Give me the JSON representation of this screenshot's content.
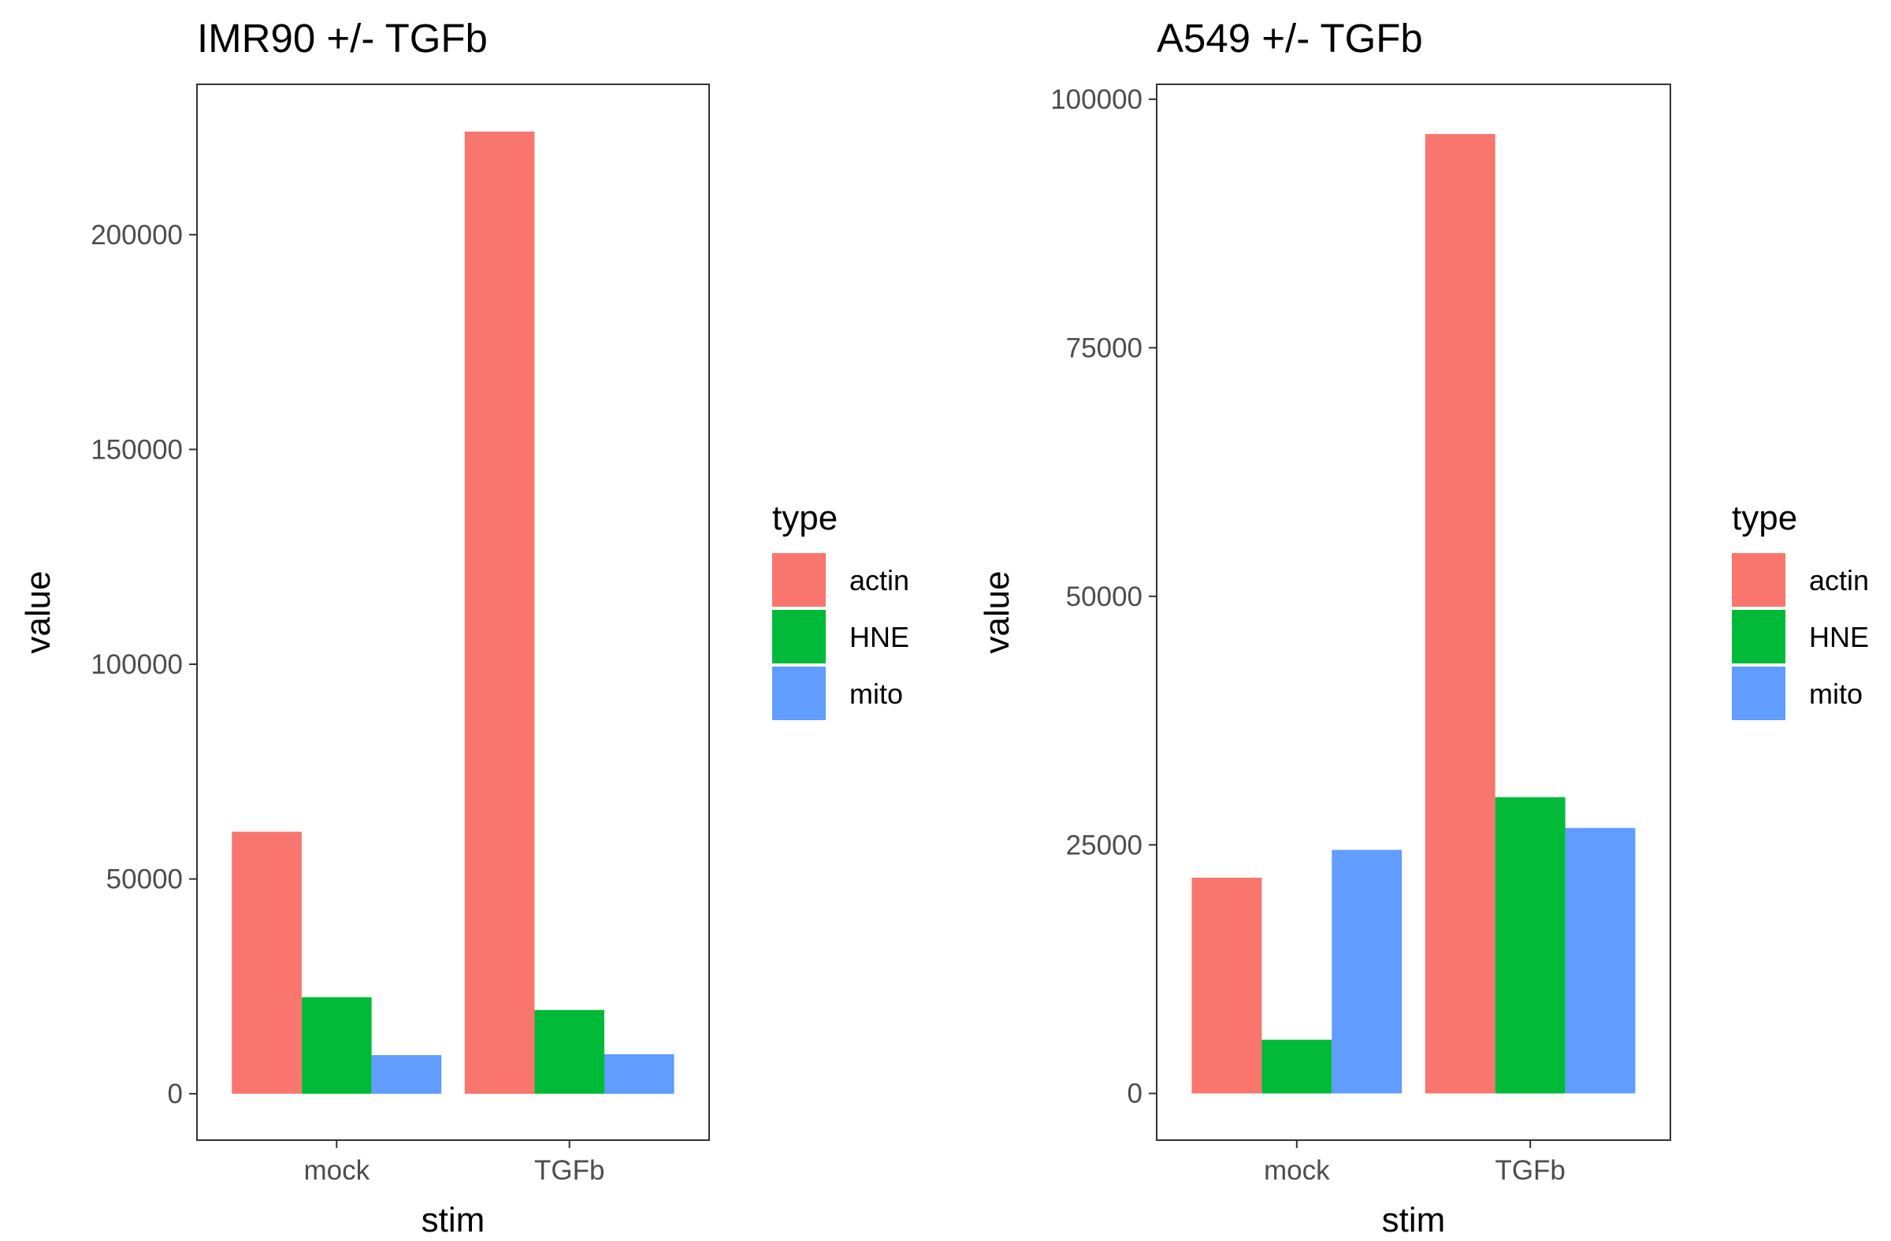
{
  "chart_data": [
    {
      "type": "bar",
      "title": "IMR90 +/- TGFb",
      "xlabel": "stim",
      "ylabel": "value",
      "categories": [
        "mock",
        "TGFb"
      ],
      "series": [
        {
          "name": "actin",
          "color": "#F8766D",
          "values": [
            61000,
            224000
          ]
        },
        {
          "name": "HNE",
          "color": "#00BA38",
          "values": [
            22500,
            19500
          ]
        },
        {
          "name": "mito",
          "color": "#619CFF",
          "values": [
            9000,
            9200
          ]
        }
      ],
      "yticks": [
        0,
        50000,
        100000,
        150000,
        200000
      ],
      "ylim": [
        -10800,
        235000
      ],
      "grid": false,
      "legend": {
        "title": "type",
        "position": "right"
      }
    },
    {
      "type": "bar",
      "title": "A549 +/- TGFb",
      "xlabel": "stim",
      "ylabel": "value",
      "categories": [
        "mock",
        "TGFb"
      ],
      "series": [
        {
          "name": "actin",
          "color": "#F8766D",
          "values": [
            21700,
            96500
          ]
        },
        {
          "name": "HNE",
          "color": "#00BA38",
          "values": [
            5400,
            29800
          ]
        },
        {
          "name": "mito",
          "color": "#619CFF",
          "values": [
            24500,
            26700
          ]
        }
      ],
      "yticks": [
        0,
        25000,
        50000,
        75000,
        100000
      ],
      "ylim": [
        -4700,
        101500
      ],
      "grid": false,
      "legend": {
        "title": "type",
        "position": "right"
      }
    }
  ]
}
